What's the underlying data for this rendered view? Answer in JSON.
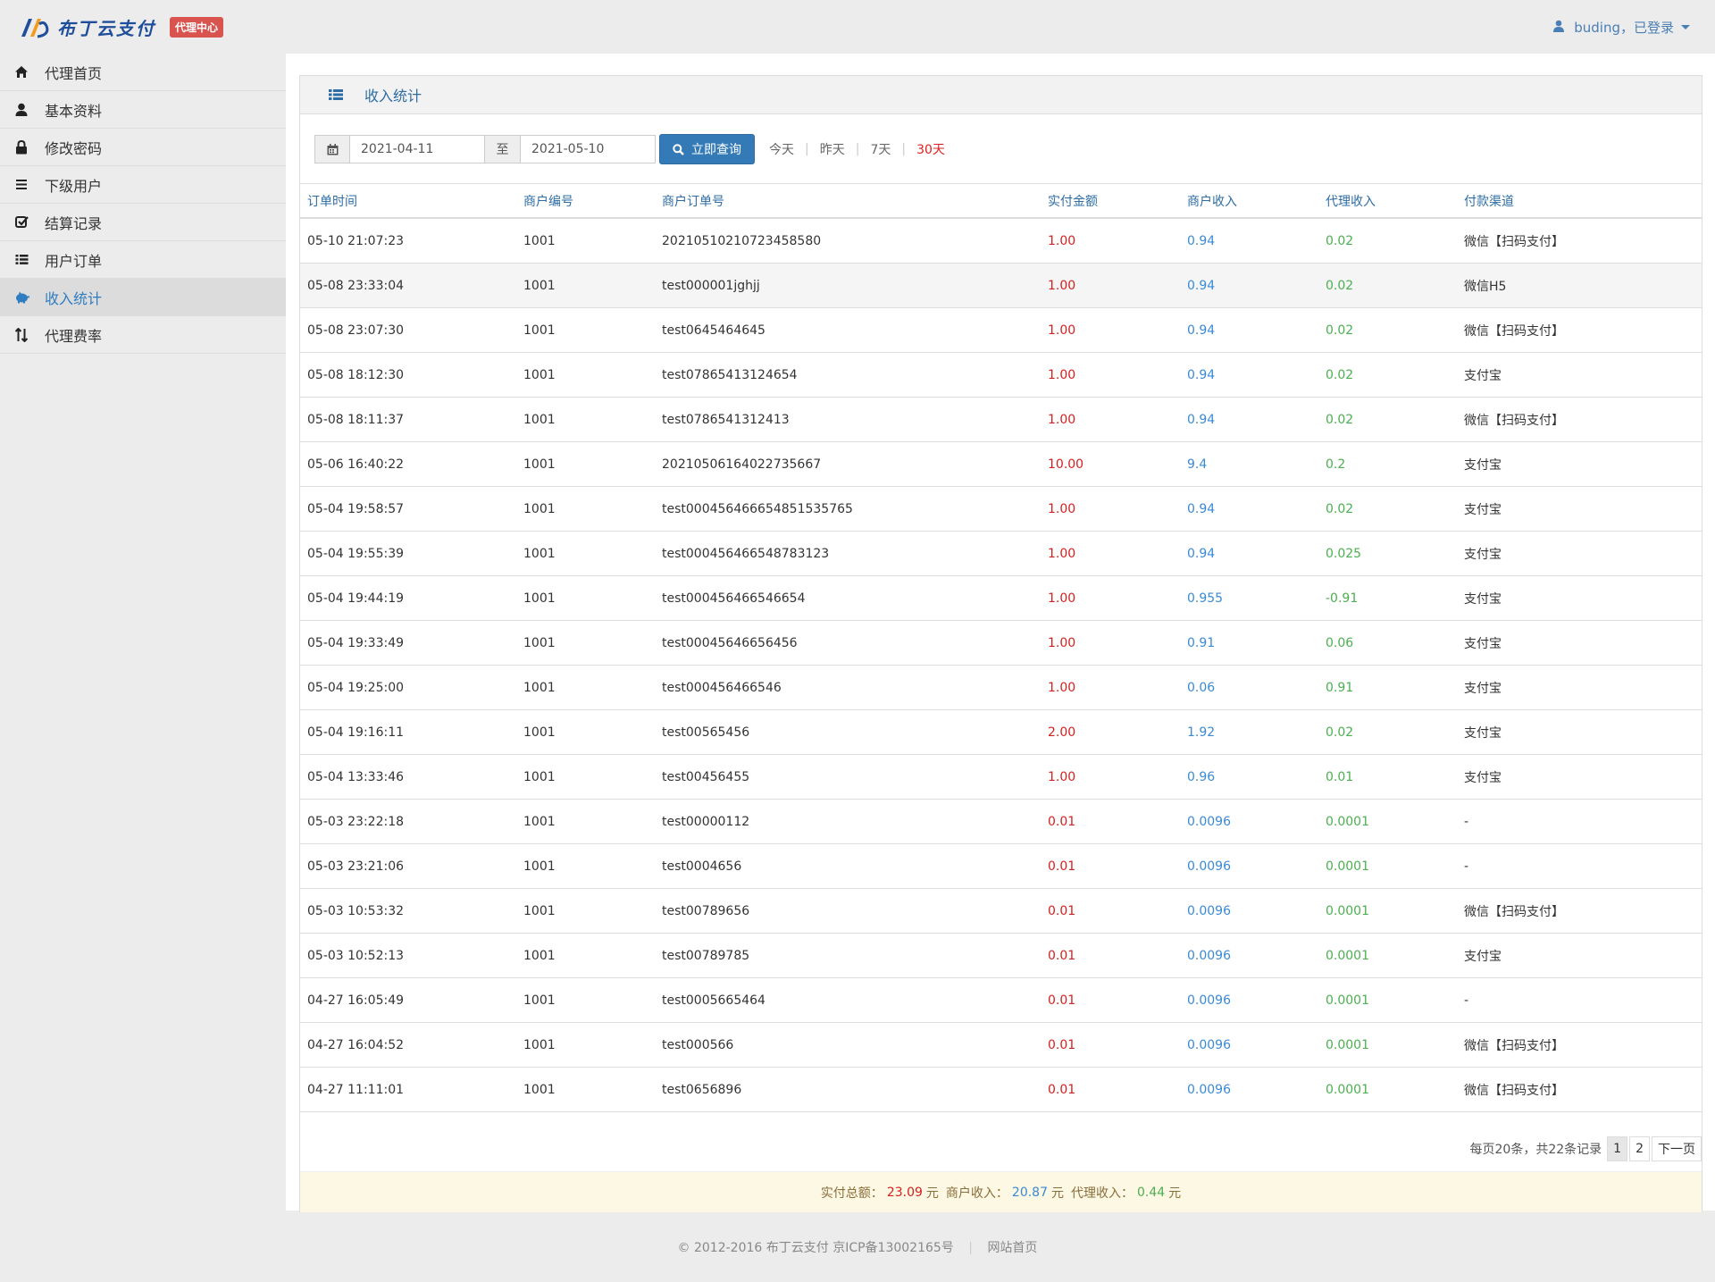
{
  "header": {
    "logo_text": "布丁云支付",
    "badge": "代理中心",
    "user": "buding，已登录"
  },
  "sidebar": {
    "items": [
      {
        "label": "代理首页",
        "icon": "home-icon"
      },
      {
        "label": "基本资料",
        "icon": "user-icon"
      },
      {
        "label": "修改密码",
        "icon": "lock-icon"
      },
      {
        "label": "下级用户",
        "icon": "list-icon"
      },
      {
        "label": "结算记录",
        "icon": "check-square-icon"
      },
      {
        "label": "用户订单",
        "icon": "th-list-icon"
      },
      {
        "label": "收入统计",
        "icon": "piggy-bank-icon",
        "active": true
      },
      {
        "label": "代理费率",
        "icon": "sort-icon"
      }
    ]
  },
  "panel": {
    "title": "收入统计"
  },
  "filter": {
    "start_date": "2021-04-11",
    "to_label": "至",
    "end_date": "2021-05-10",
    "query_button": "立即查询",
    "quick": [
      {
        "label": "今天"
      },
      {
        "label": "昨天"
      },
      {
        "label": "7天"
      },
      {
        "label": "30天",
        "active": true
      }
    ]
  },
  "table": {
    "columns": [
      "订单时间",
      "商户编号",
      "商户订单号",
      "实付金额",
      "商户收入",
      "代理收入",
      "付款渠道"
    ],
    "rows": [
      [
        "05-10 21:07:23",
        "1001",
        "20210510210723458580",
        "1.00",
        "0.94",
        "0.02",
        "微信【扫码支付】"
      ],
      [
        "05-08 23:33:04",
        "1001",
        "test000001jghjj",
        "1.00",
        "0.94",
        "0.02",
        "微信H5"
      ],
      [
        "05-08 23:07:30",
        "1001",
        "test0645464645",
        "1.00",
        "0.94",
        "0.02",
        "微信【扫码支付】"
      ],
      [
        "05-08 18:12:30",
        "1001",
        "test07865413124654",
        "1.00",
        "0.94",
        "0.02",
        "支付宝"
      ],
      [
        "05-08 18:11:37",
        "1001",
        "test0786541312413",
        "1.00",
        "0.94",
        "0.02",
        "微信【扫码支付】"
      ],
      [
        "05-06 16:40:22",
        "1001",
        "20210506164022735667",
        "10.00",
        "9.4",
        "0.2",
        "支付宝"
      ],
      [
        "05-04 19:58:57",
        "1001",
        "test000456466654851535765",
        "1.00",
        "0.94",
        "0.02",
        "支付宝"
      ],
      [
        "05-04 19:55:39",
        "1001",
        "test000456466548783123",
        "1.00",
        "0.94",
        "0.025",
        "支付宝"
      ],
      [
        "05-04 19:44:19",
        "1001",
        "test000456466546654",
        "1.00",
        "0.955",
        "-0.91",
        "支付宝"
      ],
      [
        "05-04 19:33:49",
        "1001",
        "test00045646656456",
        "1.00",
        "0.91",
        "0.06",
        "支付宝"
      ],
      [
        "05-04 19:25:00",
        "1001",
        "test000456466546",
        "1.00",
        "0.06",
        "0.91",
        "支付宝"
      ],
      [
        "05-04 19:16:11",
        "1001",
        "test00565456",
        "2.00",
        "1.92",
        "0.02",
        "支付宝"
      ],
      [
        "05-04 13:33:46",
        "1001",
        "test00456455",
        "1.00",
        "0.96",
        "0.01",
        "支付宝"
      ],
      [
        "05-03 23:22:18",
        "1001",
        "test00000112",
        "0.01",
        "0.0096",
        "0.0001",
        "-"
      ],
      [
        "05-03 23:21:06",
        "1001",
        "test0004656",
        "0.01",
        "0.0096",
        "0.0001",
        "-"
      ],
      [
        "05-03 10:53:32",
        "1001",
        "test00789656",
        "0.01",
        "0.0096",
        "0.0001",
        "微信【扫码支付】"
      ],
      [
        "05-03 10:52:13",
        "1001",
        "test00789785",
        "0.01",
        "0.0096",
        "0.0001",
        "支付宝"
      ],
      [
        "04-27 16:05:49",
        "1001",
        "test0005665464",
        "0.01",
        "0.0096",
        "0.0001",
        "-"
      ],
      [
        "04-27 16:04:52",
        "1001",
        "test000566",
        "0.01",
        "0.0096",
        "0.0001",
        "微信【扫码支付】"
      ],
      [
        "04-27 11:11:01",
        "1001",
        "test0656896",
        "0.01",
        "0.0096",
        "0.0001",
        "微信【扫码支付】"
      ]
    ],
    "highlighted_row": 1
  },
  "pager": {
    "info": "每页20条，共22条记录",
    "pages": [
      "1",
      "2"
    ],
    "current": "1",
    "next": "下一页"
  },
  "summary": {
    "paid_label": "实付总额：",
    "paid_value": "23.09",
    "merchant_label": "商户收入：",
    "merchant_value": "20.87",
    "agent_label": "代理收入：",
    "agent_value": "0.44",
    "unit": "元"
  },
  "footer": {
    "copyright": "© 2012-2016  布丁云支付  京ICP备13002165号",
    "home_link": "网站首页"
  },
  "colors": {
    "amount": "#d42020",
    "merchant_income": "#3a8ad6",
    "agent_income": "#4caf50",
    "primary": "#337ab7",
    "badge": "#d9534f"
  }
}
